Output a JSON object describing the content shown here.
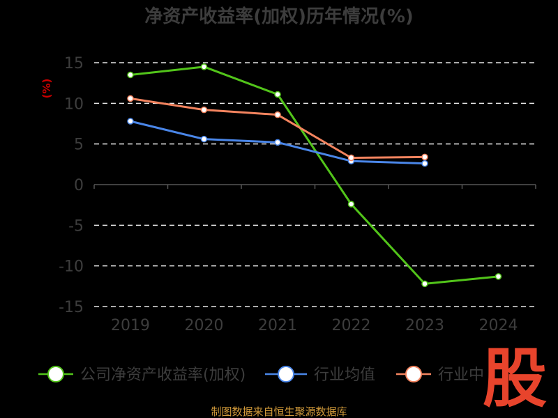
{
  "chart_data": {
    "type": "line",
    "title": "净资产收益率(加权)历年情况(%)",
    "ylabel": "(%)",
    "categories": [
      "2019",
      "2020",
      "2021",
      "2022",
      "2023",
      "2024"
    ],
    "ylim": [
      -15,
      15
    ],
    "yticks": [
      15,
      10,
      5,
      0,
      -5,
      -10,
      -15
    ],
    "grid": true,
    "legend_position": "bottom",
    "series": [
      {
        "name": "公司净资产收益率(加权)",
        "color": "#52c41a",
        "values": [
          13.5,
          14.5,
          11.1,
          -2.4,
          -12.2,
          -11.3
        ]
      },
      {
        "name": "行业均值",
        "color": "#4a86e8",
        "values": [
          7.8,
          5.6,
          5.2,
          2.9,
          2.6,
          null
        ]
      },
      {
        "name": "行业中位数",
        "color": "#f4845f",
        "values": [
          10.6,
          9.2,
          8.6,
          3.3,
          3.4,
          null
        ]
      }
    ],
    "legend_visible_labels": [
      "公司净资产收益率(加权)",
      "行业均值",
      "行业中"
    ]
  },
  "footer": {
    "source": "制图数据来自恒生聚源数据库"
  },
  "watermark": {
    "text": "股"
  }
}
